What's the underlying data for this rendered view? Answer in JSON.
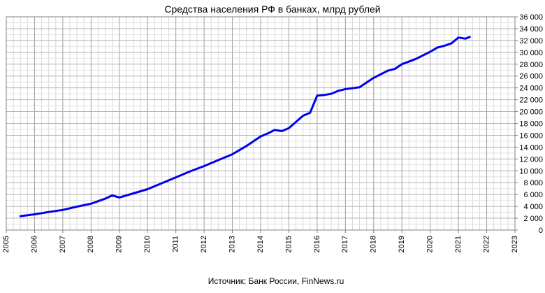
{
  "chart_data": {
    "type": "line",
    "title": "Средства населения РФ в банках, млрд рублей",
    "source": "Источник: Банк России, FinNews.ru",
    "xlabel": "",
    "ylabel": "",
    "xlim": [
      2005,
      2023
    ],
    "ylim": [
      0,
      36000
    ],
    "grid": true,
    "y_axis_position": "right",
    "x_ticks": [
      "2005",
      "2006",
      "2007",
      "2008",
      "2009",
      "2010",
      "2011",
      "2012",
      "2013",
      "2014",
      "2015",
      "2016",
      "2017",
      "2018",
      "2019",
      "2020",
      "2021",
      "2022",
      "2023"
    ],
    "y_ticks": [
      "0",
      "2 000",
      "4 000",
      "6 000",
      "8 000",
      "10 000",
      "12 000",
      "14 000",
      "16 000",
      "18 000",
      "20 000",
      "22 000",
      "24 000",
      "26 000",
      "28 000",
      "30 000",
      "32 000",
      "34 000",
      "36 000"
    ],
    "line_color": "#0000ee",
    "series": [
      {
        "points": [
          [
            2005.5,
            2350
          ],
          [
            2006.0,
            2650
          ],
          [
            2006.5,
            3050
          ],
          [
            2007.0,
            3400
          ],
          [
            2007.5,
            3950
          ],
          [
            2008.0,
            4450
          ],
          [
            2008.5,
            5300
          ],
          [
            2008.75,
            5850
          ],
          [
            2009.0,
            5500
          ],
          [
            2009.25,
            5850
          ],
          [
            2009.5,
            6200
          ],
          [
            2010.0,
            6900
          ],
          [
            2010.5,
            7900
          ],
          [
            2011.0,
            8900
          ],
          [
            2011.5,
            9900
          ],
          [
            2012.0,
            10800
          ],
          [
            2012.5,
            11800
          ],
          [
            2013.0,
            12800
          ],
          [
            2013.5,
            14200
          ],
          [
            2014.0,
            15800
          ],
          [
            2014.25,
            16300
          ],
          [
            2014.5,
            16900
          ],
          [
            2014.75,
            16700
          ],
          [
            2015.0,
            17200
          ],
          [
            2015.5,
            19300
          ],
          [
            2015.75,
            19800
          ],
          [
            2016.0,
            22700
          ],
          [
            2016.25,
            22800
          ],
          [
            2016.5,
            23000
          ],
          [
            2016.75,
            23500
          ],
          [
            2017.0,
            23800
          ],
          [
            2017.5,
            24100
          ],
          [
            2018.0,
            25700
          ],
          [
            2018.5,
            26900
          ],
          [
            2018.75,
            27200
          ],
          [
            2019.0,
            28000
          ],
          [
            2019.5,
            28900
          ],
          [
            2020.0,
            30100
          ],
          [
            2020.25,
            30800
          ],
          [
            2020.5,
            31100
          ],
          [
            2020.75,
            31500
          ],
          [
            2021.0,
            32500
          ],
          [
            2021.25,
            32300
          ],
          [
            2021.4,
            32600
          ]
        ]
      }
    ]
  }
}
